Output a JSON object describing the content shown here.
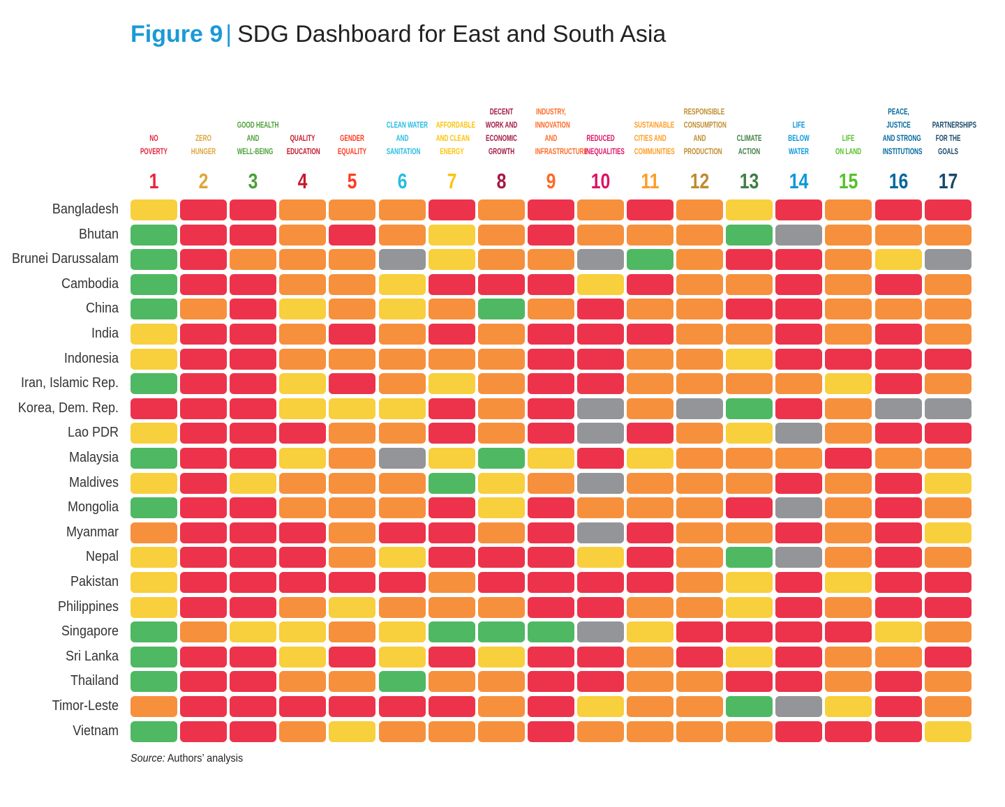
{
  "title": {
    "figure": "Figure 9",
    "separator": "|",
    "text": "SDG Dashboard for East and South Asia"
  },
  "source": {
    "label": "Source:",
    "text": "Authors’ analysis"
  },
  "colors": {
    "G": "#4fb862",
    "Y": "#f8cf3c",
    "O": "#f6903d",
    "R": "#ec334b",
    "X": "#949598"
  },
  "chart_data": {
    "type": "heatmap",
    "legend_codes": {
      "G": "green",
      "Y": "yellow",
      "O": "orange",
      "R": "red",
      "X": "grey"
    },
    "goals": [
      {
        "num": "1",
        "label": "NO\nPOVERTY",
        "color": "#E5243B"
      },
      {
        "num": "2",
        "label": "ZERO\nHUNGER",
        "color": "#DDA63A"
      },
      {
        "num": "3",
        "label": "GOOD HEALTH\nAND\nWELL-BEING",
        "color": "#4C9F38"
      },
      {
        "num": "4",
        "label": "QUALITY\nEDUCATION",
        "color": "#C5192D"
      },
      {
        "num": "5",
        "label": "GENDER\nEQUALITY",
        "color": "#FF3A21"
      },
      {
        "num": "6",
        "label": "CLEAN WATER\nAND\nSANITATION",
        "color": "#26BDE2"
      },
      {
        "num": "7",
        "label": "AFFORDABLE\nAND CLEAN\nENERGY",
        "color": "#FCC30B"
      },
      {
        "num": "8",
        "label": "DECENT\nWORK AND\nECONOMIC\nGROWTH",
        "color": "#A21942"
      },
      {
        "num": "9",
        "label": "INDUSTRY,\nINNOVATION\nAND\nINFRASTRUCTURE",
        "color": "#FD6925"
      },
      {
        "num": "10",
        "label": "REDUCED\nINEQUALITIES",
        "color": "#DD1367"
      },
      {
        "num": "11",
        "label": "SUSTAINABLE\nCITIES AND\nCOMMUNITIES",
        "color": "#FD9D24"
      },
      {
        "num": "12",
        "label": "RESPONSIBLE\nCONSUMPTION\nAND\nPRODUCTION",
        "color": "#BF8B2E"
      },
      {
        "num": "13",
        "label": "CLIMATE\nACTION",
        "color": "#3F7E44"
      },
      {
        "num": "14",
        "label": "LIFE\nBELOW\nWATER",
        "color": "#0A97D9"
      },
      {
        "num": "15",
        "label": "LIFE\nON LAND",
        "color": "#56C02B"
      },
      {
        "num": "16",
        "label": "PEACE,\nJUSTICE\nAND STRONG\nINSTITUTIONS",
        "color": "#00689D"
      },
      {
        "num": "17",
        "label": "PARTNERSHIPS\nFOR THE\nGOALS",
        "color": "#19486A"
      }
    ],
    "rows": [
      {
        "country": "Bangladesh",
        "values": "YRROOOROROROYRORR"
      },
      {
        "country": "Bhutan",
        "values": "GRRORОYOROOOGXOOO"
      },
      {
        "country": "Brunei Darussalam",
        "values": "GROOOXYOOXGORROYX"
      },
      {
        "country": "Cambodia",
        "values": "GRROOYRRRYROOROR O"
      },
      {
        "country": "China",
        "values": "GORYOYOGOROORROOO"
      },
      {
        "country": "India",
        "values": "YRRORORORRROOROR O"
      },
      {
        "country": "Indonesia",
        "values": "YRROOOOORROOYRRRR"
      },
      {
        "country": "Iran, Islamic Rep.",
        "values": "GRRYROYORROOOOYRO"
      },
      {
        "country": "Korea, Dem. Rep.",
        "values": "RRRYYYRORXOXGROXX"
      },
      {
        "country": "Lao PDR",
        "values": "YRRROOROR XROYXORR"
      },
      {
        "country": "Malaysia",
        "values": "GRRYOXYGYRYOOOROO"
      },
      {
        "country": "Maldives",
        "values": "YRYOOOGYOXOOOROR Y"
      },
      {
        "country": "Mongolia",
        "values": "GRROOORYROOORXORO"
      },
      {
        "country": "Myanmar",
        "values": "ORRRORRORXROOROR Y"
      },
      {
        "country": "Nepal",
        "values": "YRRROYRRRYROGXORO"
      },
      {
        "country": "Pakistan",
        "values": "YRRRRRORRRROYRYRR"
      },
      {
        "country": "Philippines",
        "values": "YRROYOOORROOYROR R"
      },
      {
        "country": "Singapore",
        "values": "GOYYOYGGGXYRRRRYO"
      },
      {
        "country": "Sri Lanka",
        "values": "GRRYRYRYRRORYROOR"
      },
      {
        "country": "Thailand",
        "values": "GRROOGOORROORROR O"
      },
      {
        "country": "Timor-Leste",
        "values": "ORRRRRRORYOOGXYRO"
      },
      {
        "country": "Vietnam",
        "values": "GRROYOOOROOOORRRY"
      }
    ]
  }
}
